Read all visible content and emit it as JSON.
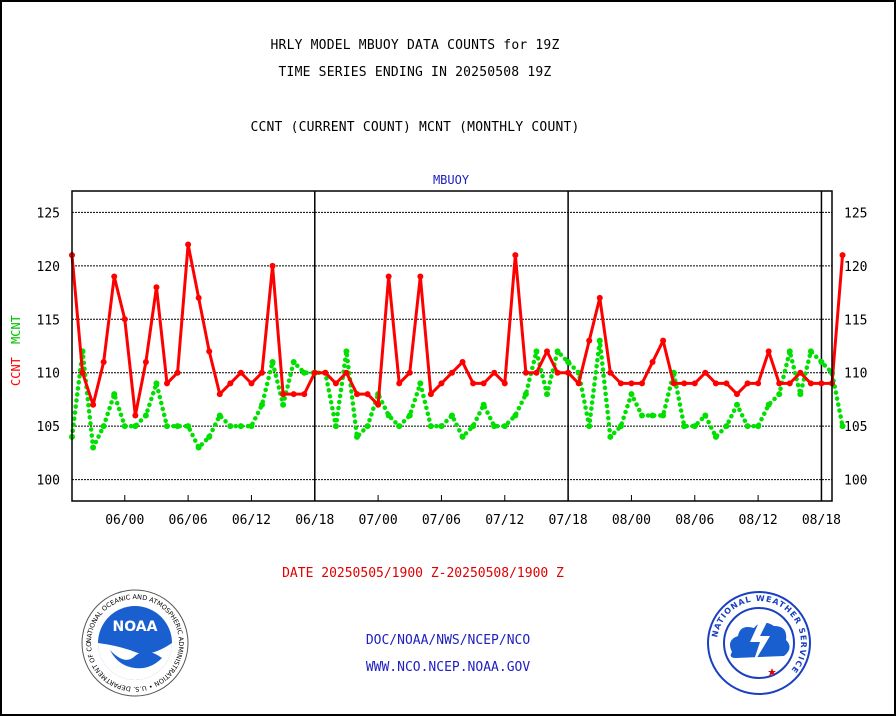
{
  "header": {
    "title_line1": "HRLY MODEL MBUOY DATA COUNTS for 19Z",
    "title_line2": "TIME SERIES ENDING IN 20250508 19Z",
    "title_line3": "CCNT (CURRENT COUNT) MCNT (MONTHLY COUNT)"
  },
  "footer": {
    "date_range": "DATE 20250505/1900 Z-20250508/1900 Z",
    "link1": "DOC/NOAA/NWS/NCEP/NCO",
    "link2": "WWW.NCO.NCEP.NOAA.GOV"
  },
  "logos": {
    "noaa_text": "NOAA",
    "noaa_ring": "NATIONAL OCEANIC AND ATMOSPHERIC ADMINISTRATION • U.S. DEPARTMENT OF COMMERCE",
    "nws_ring": "NATIONAL WEATHER SERVICE"
  },
  "chart_data": {
    "type": "line",
    "plot_label": "MBUOY",
    "ylabel_ccnt": "CCNT",
    "ylabel_mcnt": "MCNT",
    "ylim": [
      98,
      127
    ],
    "yticks": [
      100,
      105,
      110,
      115,
      120,
      125
    ],
    "xlim": [
      0,
      72
    ],
    "xticks": [
      {
        "x": 5,
        "label": "06/00"
      },
      {
        "x": 11,
        "label": "06/06"
      },
      {
        "x": 17,
        "label": "06/12"
      },
      {
        "x": 23,
        "label": "06/18"
      },
      {
        "x": 29,
        "label": "07/00"
      },
      {
        "x": 35,
        "label": "07/06"
      },
      {
        "x": 41,
        "label": "07/12"
      },
      {
        "x": 47,
        "label": "07/18"
      },
      {
        "x": 53,
        "label": "08/00"
      },
      {
        "x": 59,
        "label": "08/06"
      },
      {
        "x": 65,
        "label": "08/12"
      },
      {
        "x": 71,
        "label": "08/18"
      }
    ],
    "day_separators": [
      23,
      47,
      71
    ],
    "grid": true,
    "colors": {
      "ccnt": "#ff0000",
      "mcnt": "#00e000",
      "mbuoy_label": "#2020c0"
    },
    "series": [
      {
        "name": "CCNT",
        "style": "solid",
        "values": [
          121,
          110,
          107,
          111,
          119,
          115,
          106,
          111,
          118,
          109,
          110,
          122,
          117,
          112,
          108,
          109,
          110,
          109,
          110,
          120,
          108,
          108,
          108,
          110,
          110,
          109,
          110,
          108,
          108,
          107,
          119,
          109,
          110,
          119,
          108,
          109,
          110,
          111,
          109,
          109,
          110,
          109,
          121,
          110,
          110,
          112,
          110,
          110,
          109,
          113,
          117,
          110,
          109,
          109,
          109,
          111,
          113,
          109,
          109,
          109,
          110,
          109,
          109,
          108,
          109,
          109,
          112,
          109,
          109,
          110,
          109,
          109,
          109,
          121
        ]
      },
      {
        "name": "MCNT",
        "style": "dotted",
        "values": [
          104,
          112,
          103,
          105,
          108,
          105,
          105,
          106,
          109,
          105,
          105,
          105,
          103,
          104,
          106,
          105,
          105,
          105,
          107,
          111,
          107,
          111,
          110,
          110,
          110,
          105,
          112,
          104,
          105,
          108,
          106,
          105,
          106,
          109,
          105,
          105,
          106,
          104,
          105,
          107,
          105,
          105,
          106,
          108,
          112,
          108,
          112,
          111,
          110,
          105,
          113,
          104,
          105,
          108,
          106,
          106,
          106,
          110,
          105,
          105,
          106,
          104,
          105,
          107,
          105,
          105,
          107,
          108,
          112,
          108,
          112,
          111,
          110,
          105
        ]
      }
    ]
  }
}
